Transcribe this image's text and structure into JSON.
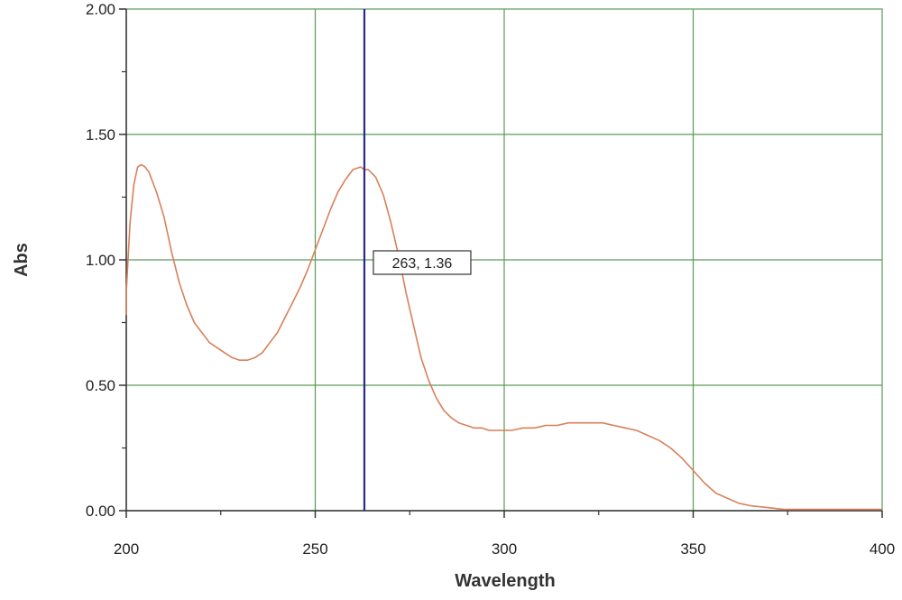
{
  "chart_data": {
    "type": "line",
    "title": "",
    "xlabel": "Wavelength",
    "ylabel": "Abs",
    "xlim": [
      200,
      400
    ],
    "ylim": [
      0,
      2
    ],
    "x_ticks": [
      200,
      250,
      300,
      350,
      400
    ],
    "x_tick_labels": [
      "200",
      "250",
      "300",
      "350",
      "400"
    ],
    "y_ticks": [
      0,
      0.5,
      1,
      1.5,
      2
    ],
    "y_tick_labels": [
      "0.00",
      "0.50",
      "1.00",
      "1.50",
      "2.00"
    ],
    "grid": true,
    "legend": "none",
    "colors": {
      "grid": "#5a9a5a",
      "series": "#d9805a",
      "cursor": "#2a2a8c",
      "axis": "#333333"
    },
    "series": [
      {
        "x": [
          199.5,
          200,
          201,
          202,
          203,
          204,
          205,
          206,
          208,
          210,
          212,
          214,
          216,
          218,
          220,
          222,
          224,
          226,
          228,
          230,
          232,
          234,
          236,
          238,
          240,
          242,
          244,
          246,
          248,
          250,
          252,
          254,
          256,
          258,
          260,
          262,
          263,
          264,
          266,
          268,
          270,
          272,
          274,
          276,
          278,
          280,
          282,
          284,
          286,
          288,
          290,
          292,
          294,
          296,
          298,
          300,
          302,
          305,
          308,
          311,
          314,
          317,
          320,
          323,
          326,
          329,
          332,
          335,
          338,
          341,
          344,
          347,
          350,
          353,
          356,
          359,
          362,
          365,
          368,
          371,
          374,
          380,
          390,
          400
        ],
        "y": [
          0.78,
          0.87,
          1.15,
          1.3,
          1.37,
          1.38,
          1.37,
          1.35,
          1.27,
          1.17,
          1.03,
          0.91,
          0.82,
          0.75,
          0.71,
          0.67,
          0.65,
          0.63,
          0.61,
          0.6,
          0.6,
          0.61,
          0.63,
          0.67,
          0.71,
          0.77,
          0.83,
          0.89,
          0.96,
          1.04,
          1.12,
          1.2,
          1.27,
          1.32,
          1.36,
          1.37,
          1.36,
          1.36,
          1.33,
          1.26,
          1.15,
          1.02,
          0.87,
          0.74,
          0.61,
          0.52,
          0.45,
          0.4,
          0.37,
          0.35,
          0.34,
          0.33,
          0.33,
          0.32,
          0.32,
          0.32,
          0.32,
          0.33,
          0.33,
          0.34,
          0.34,
          0.35,
          0.35,
          0.35,
          0.35,
          0.34,
          0.33,
          0.32,
          0.3,
          0.28,
          0.25,
          0.21,
          0.16,
          0.11,
          0.07,
          0.05,
          0.03,
          0.02,
          0.015,
          0.01,
          0.005,
          0.005,
          0.005,
          0.005
        ]
      }
    ],
    "cursor": {
      "x": 263,
      "label": "263, 1.36"
    }
  }
}
